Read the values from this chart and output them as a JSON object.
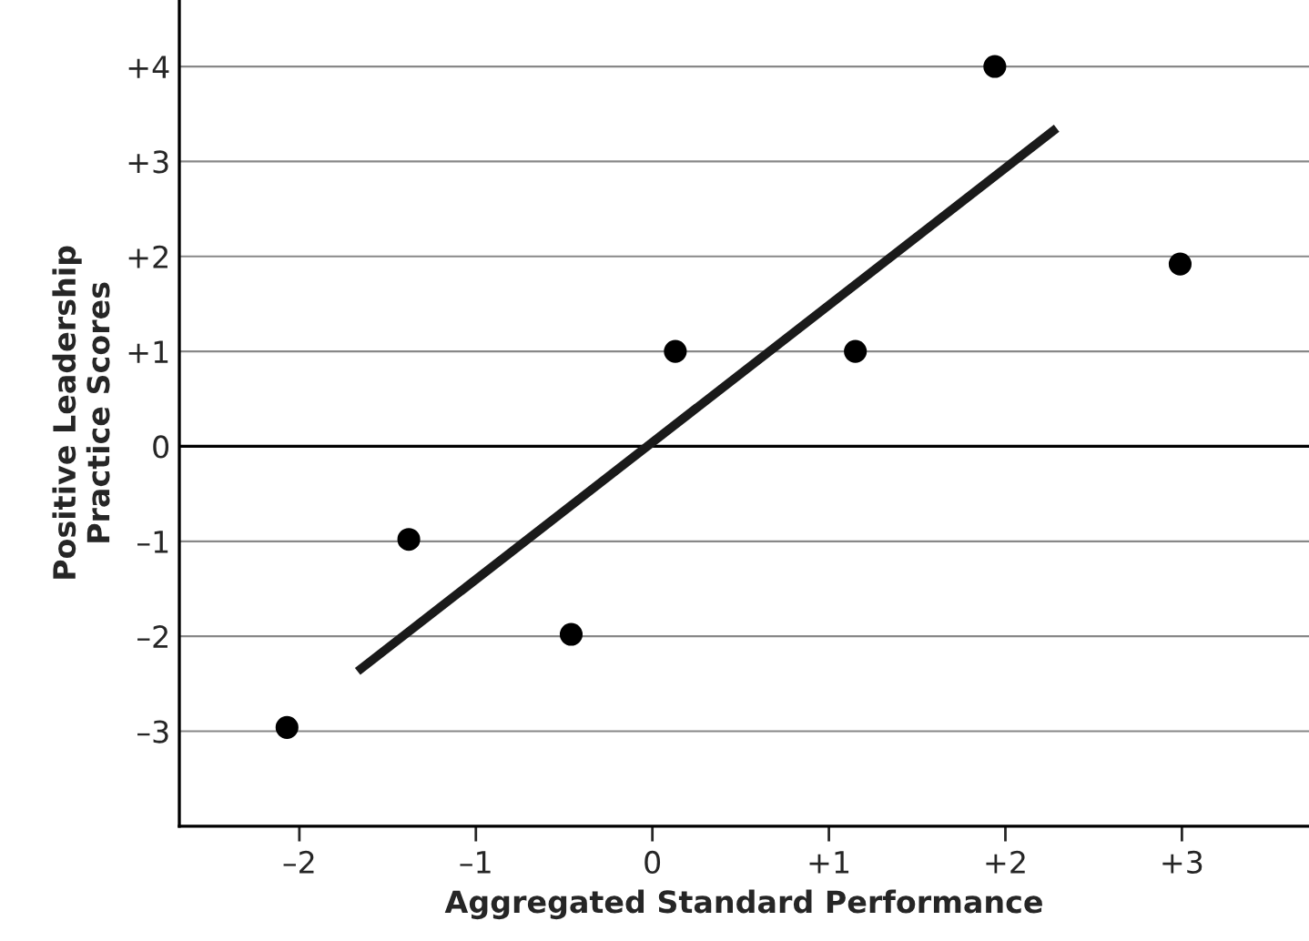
{
  "chart_data": {
    "type": "scatter",
    "xlabel": "Aggregated Standard Performance",
    "ylabel": "Positive Leadership\nPractice Scores",
    "x": [
      -2.07,
      -1.38,
      -0.46,
      0.13,
      1.15,
      1.94,
      2.99
    ],
    "series": [
      {
        "color": "#000000",
        "values": [
          -2.96,
          -0.98,
          -1.98,
          1.0,
          1.0,
          4.0,
          1.92
        ],
        "marker": "circle"
      },
      {
        "type": "line",
        "color": "#1a1a1a",
        "x": [
          -1.67,
          2.29
        ],
        "values": [
          -2.37,
          3.35
        ],
        "marker": "none"
      }
    ],
    "xlim": [
      -2.68,
      3.72
    ],
    "ylim": [
      -4.0,
      4.7
    ],
    "xticks": [
      {
        "value": -2,
        "label": "–2"
      },
      {
        "value": -1,
        "label": "–1"
      },
      0,
      {
        "value": 1,
        "label": "+1"
      },
      {
        "value": 2,
        "label": "+2"
      },
      {
        "value": 3,
        "label": "+3"
      }
    ],
    "yticks": [
      {
        "value": -3,
        "label": "–3"
      },
      {
        "value": -2,
        "label": "–2"
      },
      {
        "value": -1,
        "label": "–1"
      },
      0,
      {
        "value": 1,
        "label": "+1"
      },
      {
        "value": 2,
        "label": "+2"
      },
      {
        "value": 3,
        "label": "+3"
      },
      {
        "value": 4,
        "label": "+4"
      }
    ],
    "ref_lines": [
      {
        "axis": "y",
        "value": 0,
        "color": "#000000"
      }
    ],
    "grid": "y",
    "legend": false
  }
}
